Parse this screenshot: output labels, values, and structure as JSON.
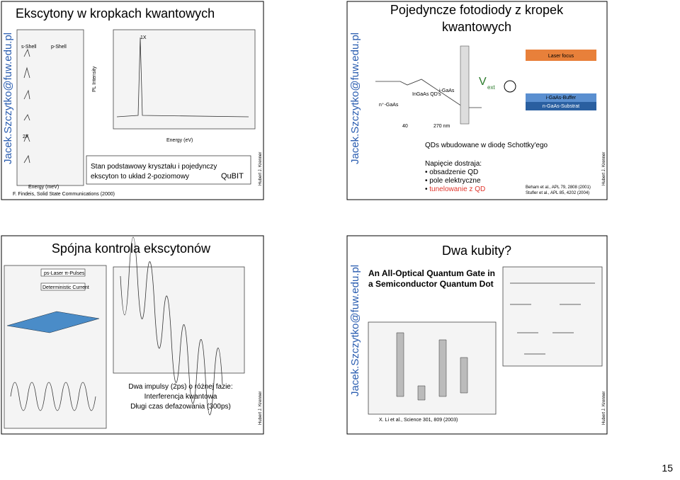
{
  "slides": [
    {
      "title": "Ekscytony w kropkach kwantowych",
      "watermark": "Jacek.Szczytko@fuw.edu.pl",
      "labels": [
        "s-Shell",
        "p-Shell",
        "1X",
        "2X",
        "PL Intensity",
        "Energy (eV)",
        "Energy (meV)"
      ],
      "caption": [
        "Stan podstawowy kryształu i pojedynczy",
        "ekscyton to układ 2-poziomowy"
      ],
      "qubit": "QuBIT",
      "reference": "F. Findeis, Solid State Communications (2000)",
      "author": "Hubert J. Krenner"
    },
    {
      "title": [
        "Pojedyncze fotodiody z kropek",
        "kwantowych"
      ],
      "watermark": "Jacek.Szczytko@fuw.edu.pl",
      "labels": [
        "n⁺-GaAs",
        "InGaAs QD's",
        "i-GaAs",
        "40",
        "270 nm",
        "Laser focus",
        "i-GaAs-Buffer",
        "n-GaAs-Substrat",
        "V",
        "ext"
      ],
      "subtitle": "QDs wbudowane w diodę Schottky'ego",
      "tuning": "Napięcie dostraja:",
      "bullets": [
        "obsadzenie QD",
        "pole elektryczne",
        "tunelowanie z QD"
      ],
      "references": [
        "Beham et al., APL 79, 2808 (2001)",
        "Stufler et al., APL 85, 4202 (2004)"
      ],
      "author": "Hubert J. Krenner"
    },
    {
      "title": "Spójna kontrola ekscytonów",
      "labels": [
        "ps-Laser π-Pulses",
        "Deterministic Current"
      ],
      "caption": [
        "Dwa impulsy (2ps) o różnej fazie:",
        "Interferencja kwantowa",
        "Długi czas defazowania (300ps)"
      ],
      "author": "Hubert J. Krenner"
    },
    {
      "title": "Dwa kubity?",
      "watermark": "Jacek.Szczytko@fuw.edu.pl",
      "paper_title": [
        "An All-Optical Quantum Gate in",
        "a Semiconductor Quantum Dot"
      ],
      "reference": "X. Li et al., Science 301, 809 (2003)",
      "author": "Hubert J. Krenner"
    }
  ],
  "page_number": "15"
}
